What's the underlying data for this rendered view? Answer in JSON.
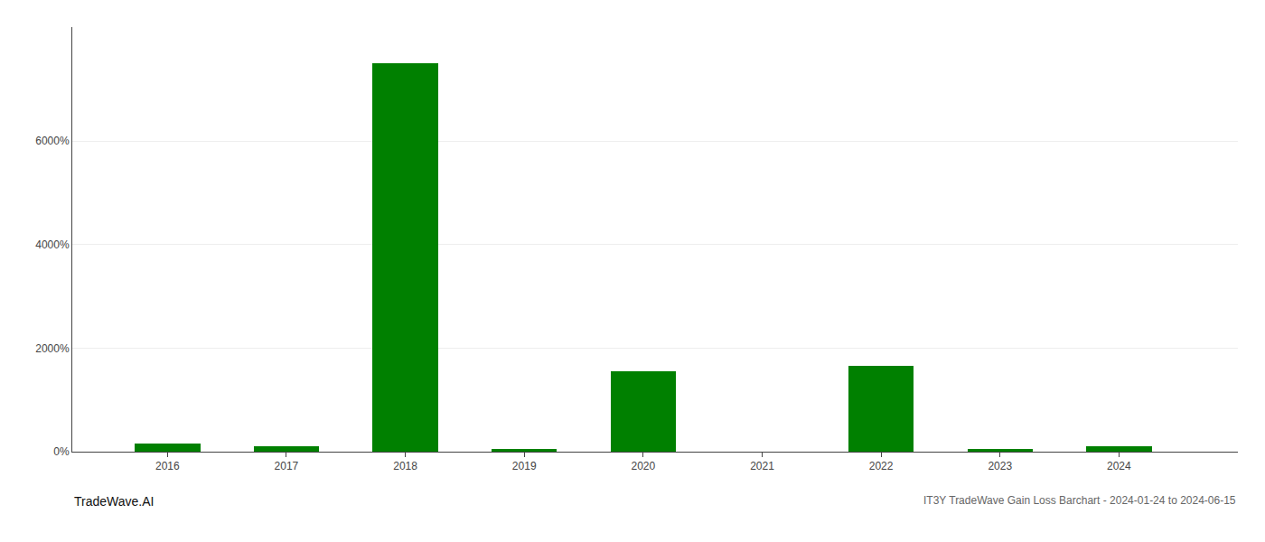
{
  "chart_data": {
    "type": "bar",
    "x": [
      2016,
      2017,
      2018,
      2019,
      2020,
      2021,
      2022,
      2023,
      2024
    ],
    "values": [
      150,
      100,
      7500,
      50,
      1550,
      0,
      1650,
      50,
      100
    ],
    "color": "#008000",
    "xlim": [
      2015.2,
      2025.0
    ],
    "xticks": [
      2016,
      2017,
      2018,
      2019,
      2020,
      2021,
      2022,
      2023,
      2024
    ],
    "ylim": [
      0,
      8200
    ],
    "yticks": [
      {
        "value": 0,
        "label": "0%"
      },
      {
        "value": 2000,
        "label": "2000%"
      },
      {
        "value": 4000,
        "label": "4000%"
      },
      {
        "value": 6000,
        "label": "6000%"
      }
    ],
    "grid": true,
    "annotations": [
      "TradeWave.AI",
      "IT3Y TradeWave Gain Loss Barchart - 2024-01-24 to 2024-06-15"
    ]
  }
}
